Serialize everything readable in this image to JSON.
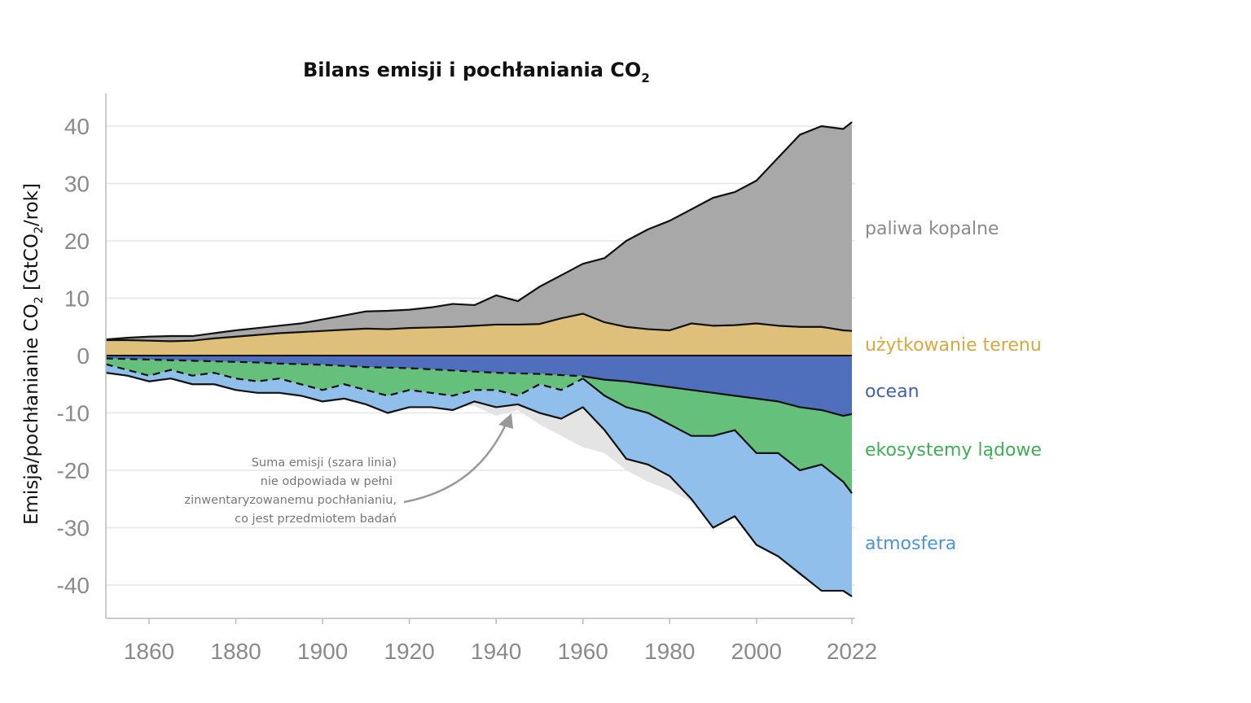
{
  "chart_data": {
    "type": "area",
    "title": {
      "main": "Bilans emisji i pochłaniania CO",
      "sub": "2"
    },
    "ylabel": {
      "a": "Emisja/pochłanianie CO",
      "a_sub": "2",
      "b": " [GtCO",
      "b_sub": "2",
      "c": "/rok]"
    },
    "xlabel": "",
    "xlim": [
      1850,
      2022
    ],
    "ylim": [
      -45,
      45
    ],
    "grid": true,
    "x_ticks": [
      "1860",
      "1880",
      "1900",
      "1920",
      "1940",
      "1960",
      "1980",
      "2000",
      "2022"
    ],
    "y_ticks": [
      "40",
      "30",
      "20",
      "10",
      "0",
      "-10",
      "-20",
      "-30",
      "-40"
    ],
    "years": [
      1850,
      1855,
      1860,
      1865,
      1870,
      1875,
      1880,
      1885,
      1890,
      1895,
      1900,
      1905,
      1910,
      1915,
      1920,
      1925,
      1930,
      1935,
      1940,
      1945,
      1950,
      1955,
      1960,
      1965,
      1970,
      1975,
      1980,
      1985,
      1990,
      1995,
      2000,
      2005,
      2010,
      2015,
      2020,
      2022
    ],
    "series": [
      {
        "name": "użytkowanie terenu",
        "color": "#dfc07a",
        "kind": "source",
        "values": [
          2.7,
          2.7,
          2.6,
          2.5,
          2.6,
          3.0,
          3.3,
          3.6,
          3.9,
          4.1,
          4.3,
          4.5,
          4.7,
          4.6,
          4.8,
          4.9,
          5.0,
          5.2,
          5.4,
          5.4,
          5.5,
          6.5,
          7.3,
          5.8,
          5.0,
          4.6,
          4.4,
          5.6,
          5.2,
          5.3,
          5.6,
          5.2,
          5.0,
          5.0,
          4.4,
          4.3
        ]
      },
      {
        "name": "paliwa kopalne",
        "color": "#a8a8a8",
        "kind": "source",
        "values": [
          0.1,
          0.4,
          0.7,
          0.9,
          0.8,
          0.9,
          1.1,
          1.2,
          1.3,
          1.5,
          2.0,
          2.5,
          3.0,
          3.2,
          3.2,
          3.5,
          4.0,
          3.6,
          5.1,
          4.1,
          6.5,
          7.5,
          8.7,
          11.2,
          15.0,
          17.4,
          19.1,
          19.9,
          22.3,
          23.2,
          24.9,
          29.3,
          33.5,
          35.0,
          35.1,
          36.4
        ]
      },
      {
        "name": "ocean",
        "color": "#4f6fbc",
        "kind": "sink",
        "values": [
          0.5,
          0.6,
          0.7,
          0.8,
          0.9,
          1.0,
          1.1,
          1.2,
          1.4,
          1.5,
          1.6,
          1.8,
          2.0,
          2.1,
          2.2,
          2.4,
          2.6,
          2.8,
          3.0,
          3.1,
          3.2,
          3.4,
          3.6,
          4.2,
          4.5,
          5.0,
          5.5,
          6.0,
          6.5,
          7.0,
          7.5,
          8.0,
          9.0,
          9.5,
          10.5,
          10.2
        ]
      },
      {
        "name": "ekosystemy lądowe",
        "color": "#65c07c",
        "kind": "sink",
        "values": [
          1.0,
          1.9,
          2.8,
          1.7,
          2.6,
          2.0,
          2.9,
          3.3,
          2.6,
          3.5,
          4.4,
          3.2,
          4.0,
          4.9,
          3.8,
          4.1,
          4.4,
          3.2,
          3.0,
          3.9,
          1.8,
          2.6,
          0.4,
          2.8,
          4.5,
          5.0,
          6.5,
          8.0,
          7.5,
          6.0,
          9.5,
          9.0,
          11.0,
          9.5,
          11.5,
          13.8
        ]
      },
      {
        "name": "atmosfera",
        "color": "#8fbfea",
        "kind": "sink",
        "values": [
          1.5,
          1.0,
          1.0,
          1.5,
          1.5,
          2.0,
          2.0,
          2.0,
          2.5,
          2.0,
          2.0,
          2.5,
          2.5,
          3.0,
          3.0,
          2.5,
          2.5,
          2.0,
          3.0,
          1.5,
          5.0,
          5.0,
          5.0,
          6.0,
          9.0,
          9.0,
          9.0,
          11.0,
          16.0,
          15.0,
          16.0,
          18.0,
          18.0,
          22.0,
          19.0,
          18.0
        ]
      }
    ],
    "label_colors": {
      "paliwa kopalne": "#8a8a8a",
      "użytkowanie terenu": "#d9a93d",
      "ocean": "#3f62b5",
      "ekosystemy lądowe": "#3fae55",
      "atmosfera": "#4a94de"
    },
    "annotation": [
      "Suma emisji (szara linia)",
      "nie odpowiada w pełni",
      "zinwentaryzowanemu pochłanianiu,",
      "co jest przedmiotem badań"
    ]
  }
}
